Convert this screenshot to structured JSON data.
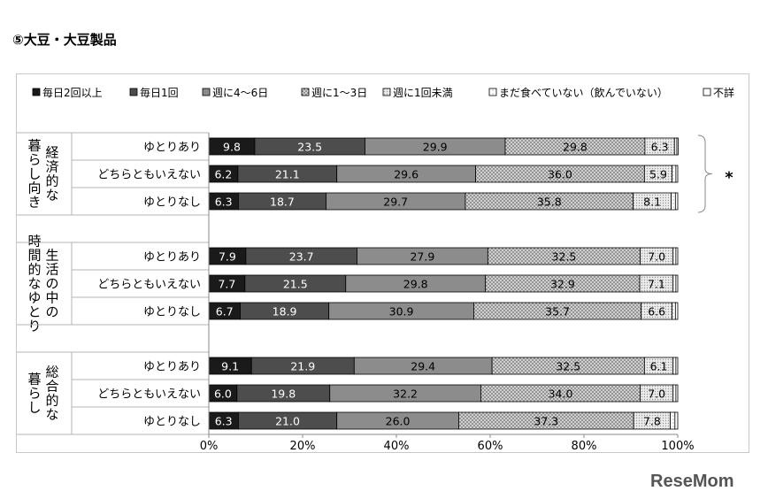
{
  "page_title": "⑤大豆・大豆製品",
  "significance_mark": "*",
  "watermark": "ReseMom",
  "chart_data": {
    "type": "bar",
    "orientation": "horizontal",
    "stacked": true,
    "percent": true,
    "xlim": [
      0,
      100
    ],
    "x_ticks": [
      "0%",
      "20%",
      "40%",
      "60%",
      "80%",
      "100%"
    ],
    "legend_position": "top",
    "series": [
      {
        "name": "毎日2回以上",
        "color": "#1a1a1a",
        "label_color": "#ffffff"
      },
      {
        "name": "毎日1回",
        "color": "#4d4d4d",
        "label_color": "#ffffff"
      },
      {
        "name": "週に4～6日",
        "color": "#8c8c8c",
        "label_color": "#000000"
      },
      {
        "name": "週に1～3日",
        "color": "#bcbcbc",
        "pattern": "dots",
        "label_color": "#000000"
      },
      {
        "name": "週に1回未満",
        "color": "#e6e6e6",
        "pattern": "fine-dots",
        "label_color": "#000000"
      },
      {
        "name": "まだ食べていない（飲んでいない）",
        "color": "#ffffff",
        "pattern": "sparse-dots",
        "label_color": "#000000"
      },
      {
        "name": "不詳",
        "color": "#ffffff",
        "label_color": "#000000"
      }
    ],
    "groups": [
      {
        "label_lines": [
          "経済的な",
          "暮らし向き"
        ],
        "rows": [
          {
            "label": "ゆとりあり",
            "values": [
              9.8,
              23.5,
              29.9,
              29.8,
              6.3,
              0.5,
              0.3
            ]
          },
          {
            "label": "どちらともいえない",
            "values": [
              6.2,
              21.1,
              29.6,
              36.0,
              5.9,
              0.8,
              0.4
            ]
          },
          {
            "label": "ゆとりなし",
            "values": [
              6.3,
              18.7,
              29.7,
              35.8,
              8.1,
              0.9,
              0.5
            ]
          }
        ]
      },
      {
        "label_lines": [
          "生活の中の",
          "時間的なゆとり"
        ],
        "rows": [
          {
            "label": "ゆとりあり",
            "values": [
              7.9,
              23.7,
              27.9,
              32.5,
              7.0,
              0.6,
              0.4
            ]
          },
          {
            "label": "どちらともいえない",
            "values": [
              7.7,
              21.5,
              29.8,
              32.9,
              7.1,
              0.6,
              0.4
            ]
          },
          {
            "label": "ゆとりなし",
            "values": [
              6.7,
              18.9,
              30.9,
              35.7,
              6.6,
              0.7,
              0.5
            ]
          }
        ]
      },
      {
        "label_lines": [
          "総合的な",
          "暮らし"
        ],
        "rows": [
          {
            "label": "ゆとりあり",
            "values": [
              9.1,
              21.9,
              29.4,
              32.5,
              6.1,
              0.6,
              0.4
            ]
          },
          {
            "label": "どちらともいえない",
            "values": [
              6.0,
              19.8,
              32.2,
              34.0,
              7.0,
              0.6,
              0.4
            ]
          },
          {
            "label": "ゆとりなし",
            "values": [
              6.3,
              21.0,
              26.0,
              37.3,
              7.8,
              1.0,
              0.6
            ]
          }
        ]
      }
    ]
  }
}
